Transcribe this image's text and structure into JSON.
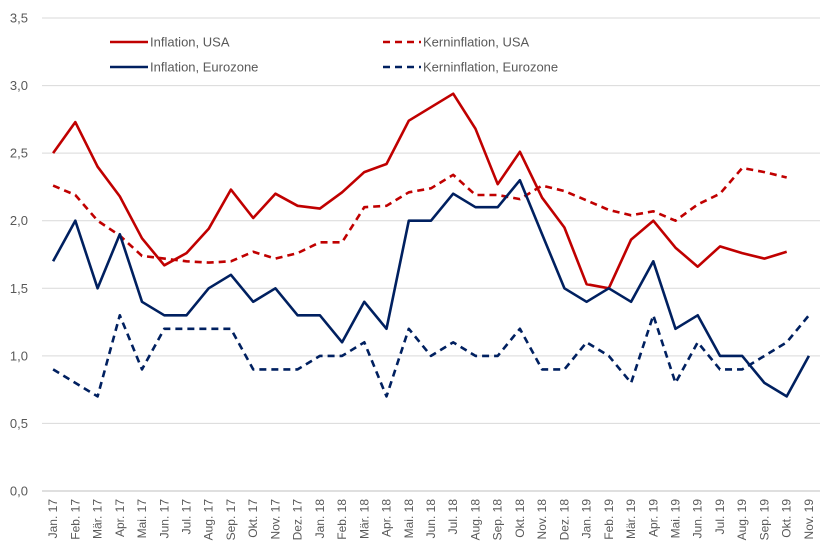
{
  "chart_data": {
    "type": "line",
    "categories": [
      "Jan. 17",
      "Feb. 17",
      "Mär. 17",
      "Apr. 17",
      "Mai. 17",
      "Jun. 17",
      "Jul. 17",
      "Aug. 17",
      "Sep. 17",
      "Okt. 17",
      "Nov. 17",
      "Dez. 17",
      "Jan. 18",
      "Feb. 18",
      "Mär. 18",
      "Apr. 18",
      "Mai. 18",
      "Jun. 18",
      "Jul. 18",
      "Aug. 18",
      "Sep. 18",
      "Okt. 18",
      "Nov. 18",
      "Dez. 18",
      "Jan. 19",
      "Feb. 19",
      "Mär. 19",
      "Apr. 19",
      "Mai. 19",
      "Jun. 19",
      "Jul. 19",
      "Aug. 19",
      "Sep. 19",
      "Okt. 19",
      "Nov. 19"
    ],
    "series": [
      {
        "name": "Inflation, USA",
        "color": "#c00000",
        "dashed": false,
        "values": [
          2.5,
          2.73,
          2.4,
          2.18,
          1.87,
          1.67,
          1.76,
          1.94,
          2.23,
          2.02,
          2.2,
          2.11,
          2.09,
          2.21,
          2.36,
          2.42,
          2.74,
          2.84,
          2.94,
          2.68,
          2.27,
          2.51,
          2.17,
          1.95,
          1.53,
          1.5,
          1.86,
          2.0,
          1.8,
          1.66,
          1.81,
          1.76,
          1.72,
          1.77,
          null
        ]
      },
      {
        "name": "Kerninflation, USA",
        "color": "#c00000",
        "dashed": true,
        "values": [
          2.26,
          2.19,
          2.0,
          1.89,
          1.74,
          1.72,
          1.7,
          1.69,
          1.7,
          1.77,
          1.72,
          1.76,
          1.84,
          1.84,
          2.1,
          2.11,
          2.21,
          2.24,
          2.34,
          2.19,
          2.19,
          2.16,
          2.26,
          2.22,
          2.15,
          2.08,
          2.04,
          2.07,
          2.0,
          2.12,
          2.2,
          2.39,
          2.36,
          2.32,
          null
        ]
      },
      {
        "name": "Inflation, Eurozone",
        "color": "#002060",
        "dashed": false,
        "values": [
          1.7,
          2.0,
          1.5,
          1.9,
          1.4,
          1.3,
          1.3,
          1.5,
          1.6,
          1.4,
          1.5,
          1.3,
          1.3,
          1.1,
          1.4,
          1.2,
          2.0,
          2.0,
          2.2,
          2.1,
          2.1,
          2.3,
          1.9,
          1.5,
          1.4,
          1.5,
          1.4,
          1.7,
          1.2,
          1.3,
          1.0,
          1.0,
          0.8,
          0.7,
          1.0
        ]
      },
      {
        "name": "Kerninflation, Eurozone",
        "color": "#002060",
        "dashed": true,
        "values": [
          0.9,
          0.8,
          0.7,
          1.3,
          0.9,
          1.2,
          1.2,
          1.2,
          1.2,
          0.9,
          0.9,
          0.9,
          1.0,
          1.0,
          1.1,
          0.7,
          1.2,
          1.0,
          1.1,
          1.0,
          1.0,
          1.2,
          0.9,
          0.9,
          1.1,
          1.0,
          0.8,
          1.3,
          0.8,
          1.1,
          0.9,
          0.9,
          1.0,
          1.1,
          1.3
        ]
      }
    ],
    "y_ticks": [
      "0,0",
      "0,5",
      "1,0",
      "1,5",
      "2,0",
      "2,5",
      "3,0",
      "3,5"
    ],
    "ylim": [
      0,
      3.5
    ],
    "grid": true,
    "legend": "top, two columns"
  }
}
